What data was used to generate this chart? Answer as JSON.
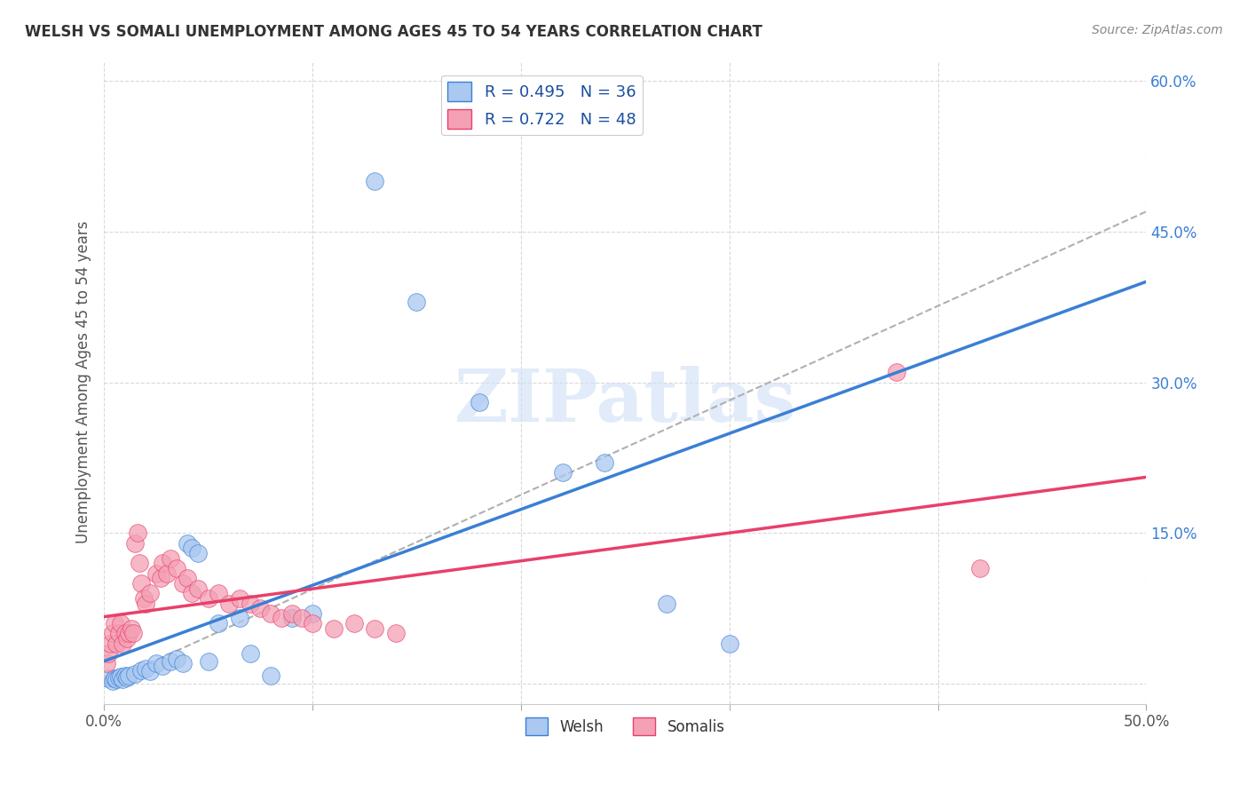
{
  "title": "WELSH VS SOMALI UNEMPLOYMENT AMONG AGES 45 TO 54 YEARS CORRELATION CHART",
  "source": "Source: ZipAtlas.com",
  "ylabel": "Unemployment Among Ages 45 to 54 years",
  "xlim": [
    0,
    0.5
  ],
  "ylim": [
    -0.02,
    0.62
  ],
  "xtick_positions": [
    0.0,
    0.1,
    0.2,
    0.3,
    0.4,
    0.5
  ],
  "xtick_labels": [
    "0.0%",
    "",
    "",
    "",
    "",
    "50.0%"
  ],
  "ytick_positions": [
    0.0,
    0.15,
    0.3,
    0.45,
    0.6
  ],
  "ytick_labels": [
    "",
    "15.0%",
    "30.0%",
    "45.0%",
    "60.0%"
  ],
  "legend_labels": [
    "Welsh",
    "Somalis"
  ],
  "welsh_R": 0.495,
  "welsh_N": 36,
  "somali_R": 0.722,
  "somali_N": 48,
  "welsh_color": "#aac8f0",
  "somali_color": "#f4a0b5",
  "welsh_line_color": "#3a7fd5",
  "somali_line_color": "#e8406a",
  "trend_line_color": "#b0b0b0",
  "watermark_color": "#d0dff5",
  "background_color": "#ffffff",
  "grid_color": "#d0d0d0",
  "ytick_color": "#3a7fd5",
  "xtick_color": "#555555",
  "title_color": "#333333",
  "source_color": "#888888",
  "ylabel_color": "#555555",
  "welsh_points": [
    [
      0.002,
      0.005
    ],
    [
      0.004,
      0.003
    ],
    [
      0.005,
      0.005
    ],
    [
      0.006,
      0.004
    ],
    [
      0.007,
      0.006
    ],
    [
      0.008,
      0.007
    ],
    [
      0.009,
      0.004
    ],
    [
      0.01,
      0.008
    ],
    [
      0.011,
      0.006
    ],
    [
      0.012,
      0.008
    ],
    [
      0.015,
      0.01
    ],
    [
      0.018,
      0.013
    ],
    [
      0.02,
      0.015
    ],
    [
      0.022,
      0.012
    ],
    [
      0.025,
      0.02
    ],
    [
      0.028,
      0.018
    ],
    [
      0.032,
      0.022
    ],
    [
      0.035,
      0.025
    ],
    [
      0.038,
      0.02
    ],
    [
      0.04,
      0.14
    ],
    [
      0.042,
      0.135
    ],
    [
      0.045,
      0.13
    ],
    [
      0.05,
      0.022
    ],
    [
      0.055,
      0.06
    ],
    [
      0.065,
      0.065
    ],
    [
      0.07,
      0.03
    ],
    [
      0.08,
      0.008
    ],
    [
      0.09,
      0.065
    ],
    [
      0.1,
      0.07
    ],
    [
      0.13,
      0.5
    ],
    [
      0.15,
      0.38
    ],
    [
      0.18,
      0.28
    ],
    [
      0.22,
      0.21
    ],
    [
      0.24,
      0.22
    ],
    [
      0.27,
      0.08
    ],
    [
      0.3,
      0.04
    ]
  ],
  "somali_points": [
    [
      0.001,
      0.02
    ],
    [
      0.002,
      0.03
    ],
    [
      0.003,
      0.04
    ],
    [
      0.004,
      0.05
    ],
    [
      0.005,
      0.06
    ],
    [
      0.006,
      0.04
    ],
    [
      0.007,
      0.05
    ],
    [
      0.008,
      0.06
    ],
    [
      0.009,
      0.04
    ],
    [
      0.01,
      0.05
    ],
    [
      0.011,
      0.045
    ],
    [
      0.012,
      0.05
    ],
    [
      0.013,
      0.055
    ],
    [
      0.014,
      0.05
    ],
    [
      0.015,
      0.14
    ],
    [
      0.016,
      0.15
    ],
    [
      0.017,
      0.12
    ],
    [
      0.018,
      0.1
    ],
    [
      0.019,
      0.085
    ],
    [
      0.02,
      0.08
    ],
    [
      0.022,
      0.09
    ],
    [
      0.025,
      0.11
    ],
    [
      0.027,
      0.105
    ],
    [
      0.028,
      0.12
    ],
    [
      0.03,
      0.11
    ],
    [
      0.032,
      0.125
    ],
    [
      0.035,
      0.115
    ],
    [
      0.038,
      0.1
    ],
    [
      0.04,
      0.105
    ],
    [
      0.042,
      0.09
    ],
    [
      0.045,
      0.095
    ],
    [
      0.05,
      0.085
    ],
    [
      0.055,
      0.09
    ],
    [
      0.06,
      0.08
    ],
    [
      0.065,
      0.085
    ],
    [
      0.07,
      0.08
    ],
    [
      0.075,
      0.075
    ],
    [
      0.08,
      0.07
    ],
    [
      0.085,
      0.065
    ],
    [
      0.09,
      0.07
    ],
    [
      0.095,
      0.065
    ],
    [
      0.1,
      0.06
    ],
    [
      0.11,
      0.055
    ],
    [
      0.12,
      0.06
    ],
    [
      0.13,
      0.055
    ],
    [
      0.14,
      0.05
    ],
    [
      0.38,
      0.31
    ],
    [
      0.42,
      0.115
    ]
  ]
}
